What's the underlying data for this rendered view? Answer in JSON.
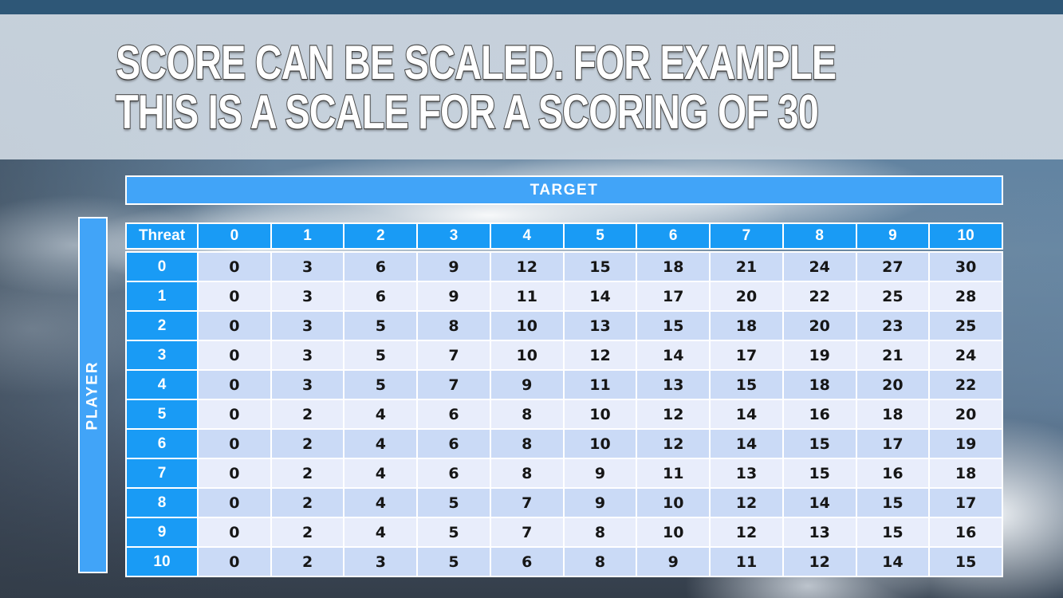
{
  "slide": {
    "title_line1": "SCORE CAN BE SCALED. FOR EXAMPLE",
    "title_line2": "THIS IS A SCALE FOR A SCORING OF 30"
  },
  "table": {
    "target_label": "TARGET",
    "player_label": "PLAYER",
    "corner_label": "Threat",
    "column_headers": [
      "0",
      "1",
      "2",
      "3",
      "4",
      "5",
      "6",
      "7",
      "8",
      "9",
      "10"
    ],
    "row_headers": [
      "0",
      "1",
      "2",
      "3",
      "4",
      "5",
      "6",
      "7",
      "8",
      "9",
      "10"
    ],
    "rows": [
      [
        0,
        3,
        6,
        9,
        12,
        15,
        18,
        21,
        24,
        27,
        30
      ],
      [
        0,
        3,
        6,
        9,
        11,
        14,
        17,
        20,
        22,
        25,
        28
      ],
      [
        0,
        3,
        5,
        8,
        10,
        13,
        15,
        18,
        20,
        23,
        25
      ],
      [
        0,
        3,
        5,
        7,
        10,
        12,
        14,
        17,
        19,
        21,
        24
      ],
      [
        0,
        3,
        5,
        7,
        9,
        11,
        13,
        15,
        18,
        20,
        22
      ],
      [
        0,
        2,
        4,
        6,
        8,
        10,
        12,
        14,
        16,
        18,
        20
      ],
      [
        0,
        2,
        4,
        6,
        8,
        10,
        12,
        14,
        15,
        17,
        19
      ],
      [
        0,
        2,
        4,
        6,
        8,
        9,
        11,
        13,
        15,
        16,
        18
      ],
      [
        0,
        2,
        4,
        5,
        7,
        9,
        10,
        12,
        14,
        15,
        17
      ],
      [
        0,
        2,
        4,
        5,
        7,
        8,
        10,
        12,
        13,
        15,
        16
      ],
      [
        0,
        2,
        3,
        5,
        6,
        8,
        9,
        11,
        12,
        14,
        15
      ]
    ]
  },
  "colors": {
    "bar_blue": "#41a4f8",
    "header_blue": "#199bf5",
    "row_light": "#cadaf6",
    "row_lighter": "#e8edfb",
    "top_strip": "#2e5777",
    "title_band": "#cbd5df",
    "grid_white": "#ffffff"
  }
}
